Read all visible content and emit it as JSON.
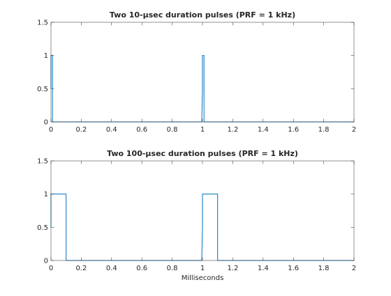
{
  "figure": {
    "line_color": "#0072BD",
    "axis_color": "#262626",
    "background": "#ffffff"
  },
  "chart_data": [
    {
      "type": "line",
      "title": "Two 10-μsec duration pulses (PRF = 1 kHz)",
      "xlabel": "",
      "ylabel": "",
      "xlim": [
        0,
        2
      ],
      "ylim": [
        0,
        1.5
      ],
      "xticks": [
        0,
        0.2,
        0.4,
        0.6,
        0.8,
        1,
        1.2,
        1.4,
        1.6,
        1.8,
        2
      ],
      "xtick_labels": [
        "0",
        "0.2",
        "0.4",
        "0.6",
        "0.8",
        "1",
        "1.2",
        "1.4",
        "1.6",
        "1.8",
        "2"
      ],
      "yticks": [
        0,
        0.5,
        1,
        1.5
      ],
      "ytick_labels": [
        "0",
        "0.5",
        "1",
        "1.5"
      ],
      "grid": false,
      "series": [
        {
          "x": [
            0,
            0,
            0.01,
            0.01,
            0.99,
            0.995,
            1.0,
            1.0,
            1.01,
            1.01,
            2
          ],
          "y": [
            0.5,
            1,
            1,
            0,
            0,
            0,
            0.5,
            1,
            1,
            0,
            0
          ]
        }
      ]
    },
    {
      "type": "line",
      "title": "Two 100-μsec duration pulses (PRF = 1 kHz)",
      "xlabel": "Milliseconds",
      "ylabel": "",
      "xlim": [
        0,
        2
      ],
      "ylim": [
        0,
        1.5
      ],
      "xticks": [
        0,
        0.2,
        0.4,
        0.6,
        0.8,
        1,
        1.2,
        1.4,
        1.6,
        1.8,
        2
      ],
      "xtick_labels": [
        "0",
        "0.2",
        "0.4",
        "0.6",
        "0.8",
        "1",
        "1.2",
        "1.4",
        "1.6",
        "1.8",
        "2"
      ],
      "yticks": [
        0,
        0.5,
        1,
        1.5
      ],
      "ytick_labels": [
        "0",
        "0.5",
        "1",
        "1.5"
      ],
      "grid": false,
      "series": [
        {
          "x": [
            0,
            0,
            0.1,
            0.1,
            0.99,
            0.995,
            1.0,
            1.0,
            1.1,
            1.1,
            2
          ],
          "y": [
            0.5,
            1,
            1,
            0,
            0,
            0,
            0.5,
            1,
            1,
            0,
            0
          ]
        }
      ]
    }
  ]
}
